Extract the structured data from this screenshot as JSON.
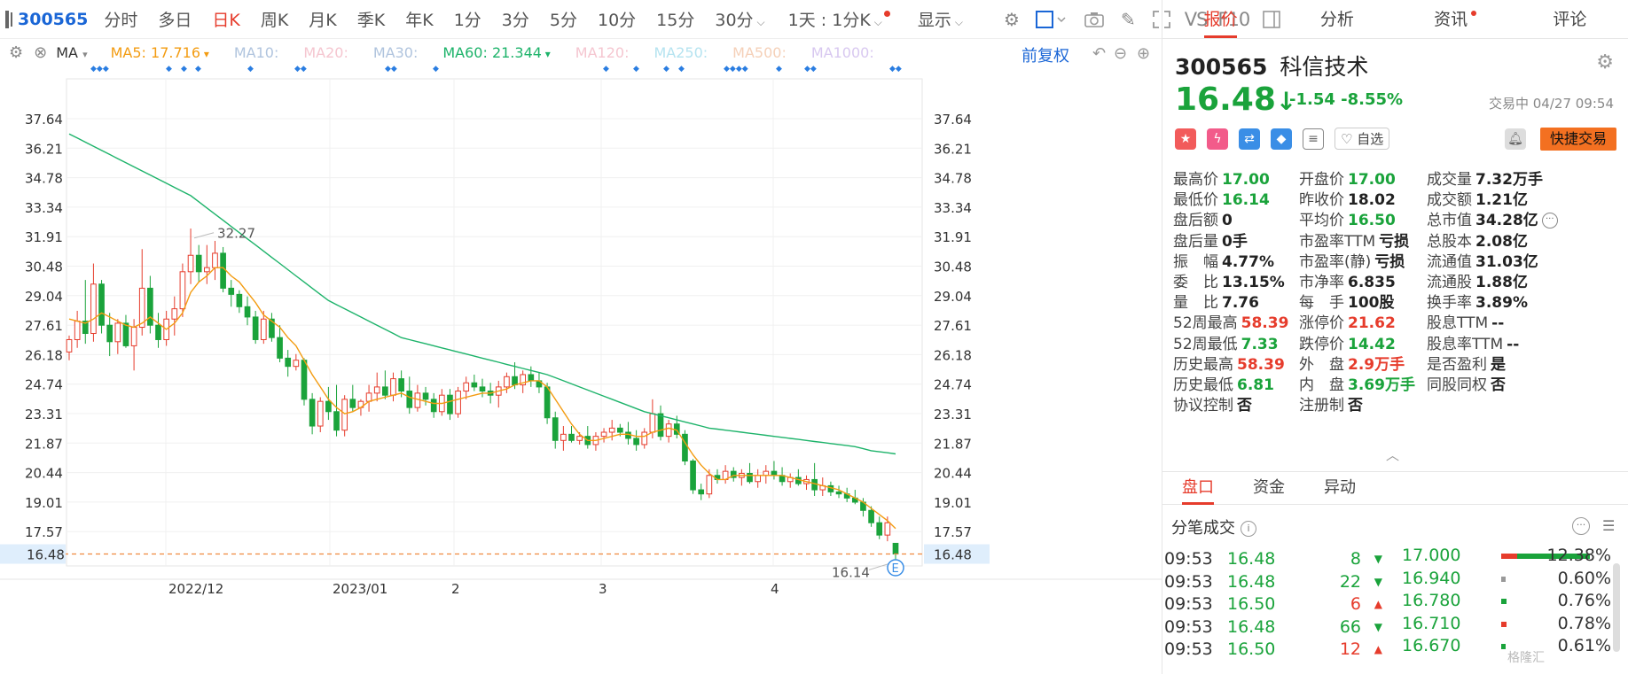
{
  "toolbar": {
    "code": "300565",
    "periods": [
      "分时",
      "多日",
      "日K",
      "周K",
      "月K",
      "季K",
      "年K",
      "1分",
      "3分",
      "5分",
      "10分",
      "15分",
      "30分"
    ],
    "active_period": "日K",
    "mode_select": "1天 : 1分K",
    "display_label": "显示",
    "vs_label": "VS",
    "f10_label": "F10"
  },
  "ma": {
    "indicator": "MA",
    "items": [
      {
        "label": "MA5:",
        "value": "17.716",
        "color": "#f39c12",
        "arrow": "▾"
      },
      {
        "label": "MA10:",
        "value": "",
        "color": "#b0c4de",
        "arrow": ""
      },
      {
        "label": "MA20:",
        "value": "",
        "color": "#f5c6d0",
        "arrow": ""
      },
      {
        "label": "MA30:",
        "value": "",
        "color": "#b0c4de",
        "arrow": ""
      },
      {
        "label": "MA60:",
        "value": "21.344",
        "color": "#1db36a",
        "arrow": "▾"
      },
      {
        "label": "MA120:",
        "value": "",
        "color": "#f5c6d0",
        "arrow": ""
      },
      {
        "label": "MA250:",
        "value": "",
        "color": "#b5e3f0",
        "arrow": ""
      },
      {
        "label": "MA500:",
        "value": "",
        "color": "#f5d0b8",
        "arrow": ""
      },
      {
        "label": "MA1000:",
        "value": "",
        "color": "#d8c8f0",
        "arrow": ""
      }
    ],
    "fuquan": "前复权"
  },
  "chart_data": {
    "type": "candlestick",
    "y_ticks": [
      "37.64",
      "36.21",
      "34.78",
      "33.34",
      "31.91",
      "30.48",
      "29.04",
      "27.61",
      "26.18",
      "24.74",
      "23.31",
      "21.87",
      "20.44",
      "19.01",
      "17.57",
      "16.48"
    ],
    "ylim": [
      16.14,
      37.64
    ],
    "x_labels": [
      "2022/12",
      "2023/01",
      "2",
      "3",
      "4"
    ],
    "current_price_label": "16.48",
    "high_annotation": "32.27",
    "low_annotation": "16.14",
    "event_marker": "E",
    "candles": [
      [
        26.3,
        27.1,
        25.9,
        26.9
      ],
      [
        26.9,
        28.3,
        26.5,
        27.8
      ],
      [
        27.8,
        29.8,
        26.7,
        27.2
      ],
      [
        27.2,
        30.6,
        26.8,
        29.6
      ],
      [
        29.6,
        29.8,
        27.2,
        27.6
      ],
      [
        27.6,
        28.2,
        26.1,
        26.8
      ],
      [
        26.8,
        27.9,
        26.2,
        27.7
      ],
      [
        27.7,
        28.1,
        26.5,
        26.6
      ],
      [
        26.6,
        27.9,
        25.4,
        27.5
      ],
      [
        27.5,
        31.3,
        27.1,
        29.4
      ],
      [
        29.4,
        30.0,
        27.2,
        27.6
      ],
      [
        27.6,
        28.2,
        26.5,
        26.9
      ],
      [
        26.9,
        28.3,
        26.6,
        27.9
      ],
      [
        27.9,
        29.0,
        27.1,
        28.4
      ],
      [
        28.4,
        30.6,
        28.0,
        30.2
      ],
      [
        30.2,
        32.3,
        29.6,
        31.0
      ],
      [
        31.0,
        31.5,
        29.7,
        30.2
      ],
      [
        30.2,
        31.5,
        29.6,
        30.4
      ],
      [
        30.4,
        31.7,
        29.8,
        31.1
      ],
      [
        31.1,
        31.4,
        29.2,
        29.4
      ],
      [
        29.4,
        29.8,
        28.5,
        29.1
      ],
      [
        29.1,
        29.3,
        28.2,
        28.5
      ],
      [
        28.5,
        29.0,
        27.6,
        28.0
      ],
      [
        28.0,
        28.3,
        26.7,
        26.9
      ],
      [
        26.9,
        28.3,
        26.7,
        27.9
      ],
      [
        27.9,
        28.2,
        26.8,
        27.0
      ],
      [
        27.0,
        27.6,
        25.8,
        26.0
      ],
      [
        26.0,
        26.4,
        25.1,
        25.6
      ],
      [
        25.6,
        26.2,
        25.4,
        25.9
      ],
      [
        25.9,
        26.0,
        23.7,
        24.0
      ],
      [
        24.0,
        24.3,
        22.3,
        22.7
      ],
      [
        22.7,
        24.1,
        22.4,
        23.9
      ],
      [
        23.9,
        24.6,
        23.0,
        23.4
      ],
      [
        23.4,
        24.7,
        22.2,
        22.5
      ],
      [
        22.5,
        24.2,
        22.2,
        24.0
      ],
      [
        24.0,
        24.7,
        23.4,
        23.6
      ],
      [
        23.6,
        24.0,
        23.2,
        23.9
      ],
      [
        23.9,
        24.7,
        23.4,
        24.3
      ],
      [
        24.3,
        25.3,
        23.9,
        24.6
      ],
      [
        24.6,
        25.4,
        24.0,
        24.2
      ],
      [
        24.2,
        25.3,
        23.9,
        25.0
      ],
      [
        25.0,
        25.4,
        24.1,
        24.4
      ],
      [
        24.4,
        25.1,
        23.3,
        23.6
      ],
      [
        23.6,
        24.7,
        23.4,
        24.3
      ],
      [
        24.3,
        24.6,
        23.7,
        24.0
      ],
      [
        24.0,
        24.3,
        23.1,
        23.4
      ],
      [
        23.4,
        24.5,
        23.2,
        24.2
      ],
      [
        24.2,
        24.5,
        23.0,
        23.3
      ],
      [
        23.3,
        24.6,
        23.1,
        24.4
      ],
      [
        24.4,
        25.1,
        24.0,
        24.8
      ],
      [
        24.8,
        25.2,
        24.4,
        24.6
      ],
      [
        24.6,
        25.0,
        24.1,
        24.4
      ],
      [
        24.4,
        24.8,
        23.8,
        24.2
      ],
      [
        24.2,
        24.9,
        23.6,
        24.6
      ],
      [
        24.6,
        25.3,
        24.3,
        25.1
      ],
      [
        25.1,
        25.8,
        24.5,
        24.7
      ],
      [
        24.7,
        25.4,
        24.3,
        25.2
      ],
      [
        25.2,
        25.6,
        24.6,
        24.9
      ],
      [
        24.9,
        25.3,
        24.3,
        24.6
      ],
      [
        24.6,
        24.8,
        22.8,
        23.1
      ],
      [
        23.1,
        23.4,
        21.6,
        22.0
      ],
      [
        22.0,
        22.7,
        21.5,
        22.3
      ],
      [
        22.3,
        22.7,
        21.9,
        22.0
      ],
      [
        22.0,
        22.4,
        21.8,
        22.2
      ],
      [
        22.2,
        22.7,
        21.6,
        21.8
      ],
      [
        21.8,
        22.4,
        21.5,
        22.2
      ],
      [
        22.2,
        22.6,
        21.9,
        22.4
      ],
      [
        22.4,
        23.0,
        22.0,
        22.6
      ],
      [
        22.6,
        22.8,
        22.2,
        22.4
      ],
      [
        22.4,
        22.9,
        21.8,
        22.1
      ],
      [
        22.1,
        22.5,
        21.5,
        21.8
      ],
      [
        21.8,
        22.6,
        21.6,
        22.4
      ],
      [
        22.4,
        24.0,
        22.1,
        23.3
      ],
      [
        23.3,
        23.7,
        22.0,
        22.2
      ],
      [
        22.2,
        23.0,
        21.9,
        22.8
      ],
      [
        22.8,
        23.2,
        22.1,
        22.3
      ],
      [
        22.3,
        22.5,
        20.8,
        21.0
      ],
      [
        21.0,
        21.1,
        19.4,
        19.6
      ],
      [
        19.6,
        19.9,
        19.1,
        19.4
      ],
      [
        19.4,
        20.6,
        19.2,
        20.3
      ],
      [
        20.3,
        20.6,
        19.9,
        20.1
      ],
      [
        20.1,
        20.8,
        19.9,
        20.5
      ],
      [
        20.5,
        20.7,
        20.0,
        20.2
      ],
      [
        20.2,
        20.6,
        19.8,
        20.4
      ],
      [
        20.4,
        20.9,
        19.9,
        20.0
      ],
      [
        20.0,
        20.6,
        19.7,
        20.3
      ],
      [
        20.3,
        20.8,
        19.9,
        20.5
      ],
      [
        20.5,
        21.0,
        20.1,
        20.3
      ],
      [
        20.3,
        20.7,
        19.8,
        20.0
      ],
      [
        20.0,
        20.4,
        19.7,
        20.2
      ],
      [
        20.2,
        20.6,
        19.8,
        19.9
      ],
      [
        19.9,
        20.3,
        19.6,
        20.1
      ],
      [
        20.1,
        20.9,
        19.3,
        19.6
      ],
      [
        19.6,
        20.2,
        19.3,
        19.8
      ],
      [
        19.8,
        20.0,
        19.3,
        19.5
      ],
      [
        19.5,
        19.8,
        19.2,
        19.4
      ],
      [
        19.4,
        19.7,
        19.0,
        19.2
      ],
      [
        19.2,
        19.6,
        18.9,
        19.0
      ],
      [
        19.0,
        19.2,
        18.3,
        18.6
      ],
      [
        18.6,
        18.8,
        17.8,
        18.0
      ],
      [
        18.0,
        18.3,
        17.2,
        17.4
      ],
      [
        17.4,
        18.3,
        17.1,
        18.0
      ],
      [
        17.0,
        17.0,
        16.14,
        16.48
      ]
    ],
    "ma5": [
      27.9,
      27.8,
      27.7,
      27.9,
      28.2,
      28.0,
      27.8,
      27.6,
      27.5,
      27.7,
      28.0,
      27.7,
      27.4,
      27.7,
      28.2,
      29.2,
      29.7,
      30.0,
      30.4,
      30.4,
      30.0,
      29.7,
      29.2,
      28.7,
      28.1,
      27.8,
      27.5,
      27.0,
      26.6,
      25.9,
      25.2,
      24.6,
      24.0,
      23.6,
      23.3,
      23.4,
      23.6,
      23.9,
      24.0,
      24.1,
      24.2,
      24.3,
      24.1,
      24.0,
      23.9,
      23.8,
      23.8,
      23.9,
      24.0,
      24.1,
      24.2,
      24.3,
      24.3,
      24.4,
      24.5,
      24.7,
      24.8,
      24.9,
      24.9,
      24.6,
      24.0,
      23.4,
      22.8,
      22.3,
      22.0,
      22.0,
      22.1,
      22.2,
      22.3,
      22.3,
      22.2,
      22.2,
      22.4,
      22.5,
      22.6,
      22.5,
      21.9,
      21.3,
      20.8,
      20.4,
      20.1,
      20.1,
      20.3,
      20.3,
      20.3,
      20.3,
      20.3,
      20.3,
      20.3,
      20.2,
      20.1,
      20.0,
      19.9,
      19.8,
      19.7,
      19.6,
      19.4,
      19.2,
      19.0,
      18.7,
      18.4,
      18.1,
      17.716
    ],
    "ma60": [
      36.9,
      36.7,
      36.5,
      36.3,
      36.1,
      35.9,
      35.7,
      35.5,
      35.3,
      35.1,
      34.9,
      34.7,
      34.5,
      34.3,
      34.1,
      33.9,
      33.6,
      33.3,
      33.0,
      32.7,
      32.4,
      32.1,
      31.8,
      31.5,
      31.2,
      30.9,
      30.6,
      30.3,
      30.0,
      29.7,
      29.4,
      29.1,
      28.8,
      28.6,
      28.4,
      28.2,
      28.0,
      27.8,
      27.6,
      27.4,
      27.2,
      27.0,
      26.9,
      26.8,
      26.7,
      26.6,
      26.5,
      26.4,
      26.3,
      26.2,
      26.1,
      26.0,
      25.9,
      25.8,
      25.7,
      25.6,
      25.5,
      25.4,
      25.3,
      25.2,
      25.05,
      24.9,
      24.75,
      24.6,
      24.45,
      24.3,
      24.15,
      24.0,
      23.85,
      23.7,
      23.55,
      23.4,
      23.3,
      23.2,
      23.1,
      23.0,
      22.9,
      22.8,
      22.7,
      22.6,
      22.55,
      22.5,
      22.45,
      22.4,
      22.35,
      22.3,
      22.25,
      22.2,
      22.15,
      22.1,
      22.05,
      22.0,
      21.95,
      21.9,
      21.85,
      21.8,
      21.75,
      21.7,
      21.6,
      21.5,
      21.45,
      21.4,
      21.344
    ],
    "signal_markers_top": [
      "◆◆◆",
      "◆",
      "◆",
      "◆",
      "◆",
      "◆◆",
      "◆◆",
      "◆",
      "◆",
      "◆",
      "◆",
      "◆",
      "◆◆◆◆",
      "◆",
      "◆◆",
      "◆◆"
    ]
  },
  "right_panel": {
    "tabs": [
      "报价",
      "分析",
      "资讯",
      "评论"
    ],
    "active_tab": "报价",
    "code": "300565",
    "name": "科信技术",
    "price": "16.48",
    "arrow": "↓",
    "change": "-1.54",
    "change_pct": "-8.55%",
    "status": "交易中 04/27 09:54",
    "zixuan": "自选",
    "quick_trade": "快捷交易",
    "quotes": [
      {
        "label": "最高价",
        "value": "17.00",
        "cls": "g"
      },
      {
        "label": "开盘价",
        "value": "17.00",
        "cls": "g"
      },
      {
        "label": "成交量",
        "value": "7.32万手",
        "cls": ""
      },
      {
        "label": "最低价",
        "value": "16.14",
        "cls": "g"
      },
      {
        "label": "昨收价",
        "value": "18.02",
        "cls": "gray"
      },
      {
        "label": "成交额",
        "value": "1.21亿",
        "cls": ""
      },
      {
        "label": "盘后额",
        "value": "0",
        "cls": ""
      },
      {
        "label": "平均价",
        "value": "16.50",
        "cls": "g"
      },
      {
        "label": "总市值",
        "value": "34.28亿",
        "cls": ""
      },
      {
        "label": "盘后量",
        "value": "0手",
        "cls": ""
      },
      {
        "label": "市盈率TTM",
        "value": "亏损",
        "cls": ""
      },
      {
        "label": "总股本",
        "value": "2.08亿",
        "cls": ""
      },
      {
        "label": "振　幅",
        "value": "4.77%",
        "cls": ""
      },
      {
        "label": "市盈率(静)",
        "value": "亏损",
        "cls": ""
      },
      {
        "label": "流通值",
        "value": "31.03亿",
        "cls": ""
      },
      {
        "label": "委　比",
        "value": "13.15%",
        "cls": ""
      },
      {
        "label": "市净率",
        "value": "6.835",
        "cls": ""
      },
      {
        "label": "流通股",
        "value": "1.88亿",
        "cls": ""
      },
      {
        "label": "量　比",
        "value": "7.76",
        "cls": ""
      },
      {
        "label": "每　手",
        "value": "100股",
        "cls": ""
      },
      {
        "label": "换手率",
        "value": "3.89%",
        "cls": ""
      },
      {
        "label": "52周最高",
        "value": "58.39",
        "cls": "r"
      },
      {
        "label": "涨停价",
        "value": "21.62",
        "cls": "r"
      },
      {
        "label": "股息TTM",
        "value": "--",
        "cls": ""
      },
      {
        "label": "52周最低",
        "value": "7.33",
        "cls": "g"
      },
      {
        "label": "跌停价",
        "value": "14.42",
        "cls": "g"
      },
      {
        "label": "股息率TTM",
        "value": "--",
        "cls": ""
      },
      {
        "label": "历史最高",
        "value": "58.39",
        "cls": "r"
      },
      {
        "label": "外　盘",
        "value": "2.9万手",
        "cls": "r"
      },
      {
        "label": "是否盈利",
        "value": "是",
        "cls": ""
      },
      {
        "label": "历史最低",
        "value": "6.81",
        "cls": "g"
      },
      {
        "label": "内　盘",
        "value": "3.69万手",
        "cls": "g"
      },
      {
        "label": "同股同权",
        "value": "否",
        "cls": ""
      },
      {
        "label": "协议控制",
        "value": "否",
        "cls": ""
      },
      {
        "label": "注册制",
        "value": "否",
        "cls": ""
      }
    ],
    "subtabs": [
      "盘口",
      "资金",
      "异动"
    ],
    "active_subtab": "盘口",
    "tick_title": "分笔成交",
    "ticks": [
      {
        "time": "09:53",
        "price": "16.48",
        "vol": "8",
        "dir": "down"
      },
      {
        "time": "09:53",
        "price": "16.48",
        "vol": "22",
        "dir": "down"
      },
      {
        "time": "09:53",
        "price": "16.50",
        "vol": "6",
        "dir": "up"
      },
      {
        "time": "09:53",
        "price": "16.48",
        "vol": "66",
        "dir": "down"
      },
      {
        "time": "09:53",
        "price": "16.50",
        "vol": "12",
        "dir": "up"
      }
    ],
    "depth": [
      {
        "price": "17.000",
        "pct": "12.38%",
        "color": "#e63c2c",
        "fill": 1.0
      },
      {
        "price": "16.940",
        "pct": "0.60%",
        "color": "#999999",
        "fill": 0.05
      },
      {
        "price": "16.780",
        "pct": "0.76%",
        "color": "#1aa33b",
        "fill": 0.06
      },
      {
        "price": "16.710",
        "pct": "0.78%",
        "color": "#e63c2c",
        "fill": 0.06
      },
      {
        "price": "16.670",
        "pct": "0.61%",
        "color": "#1aa33b",
        "fill": 0.05
      }
    ],
    "watermark": "格隆汇"
  }
}
